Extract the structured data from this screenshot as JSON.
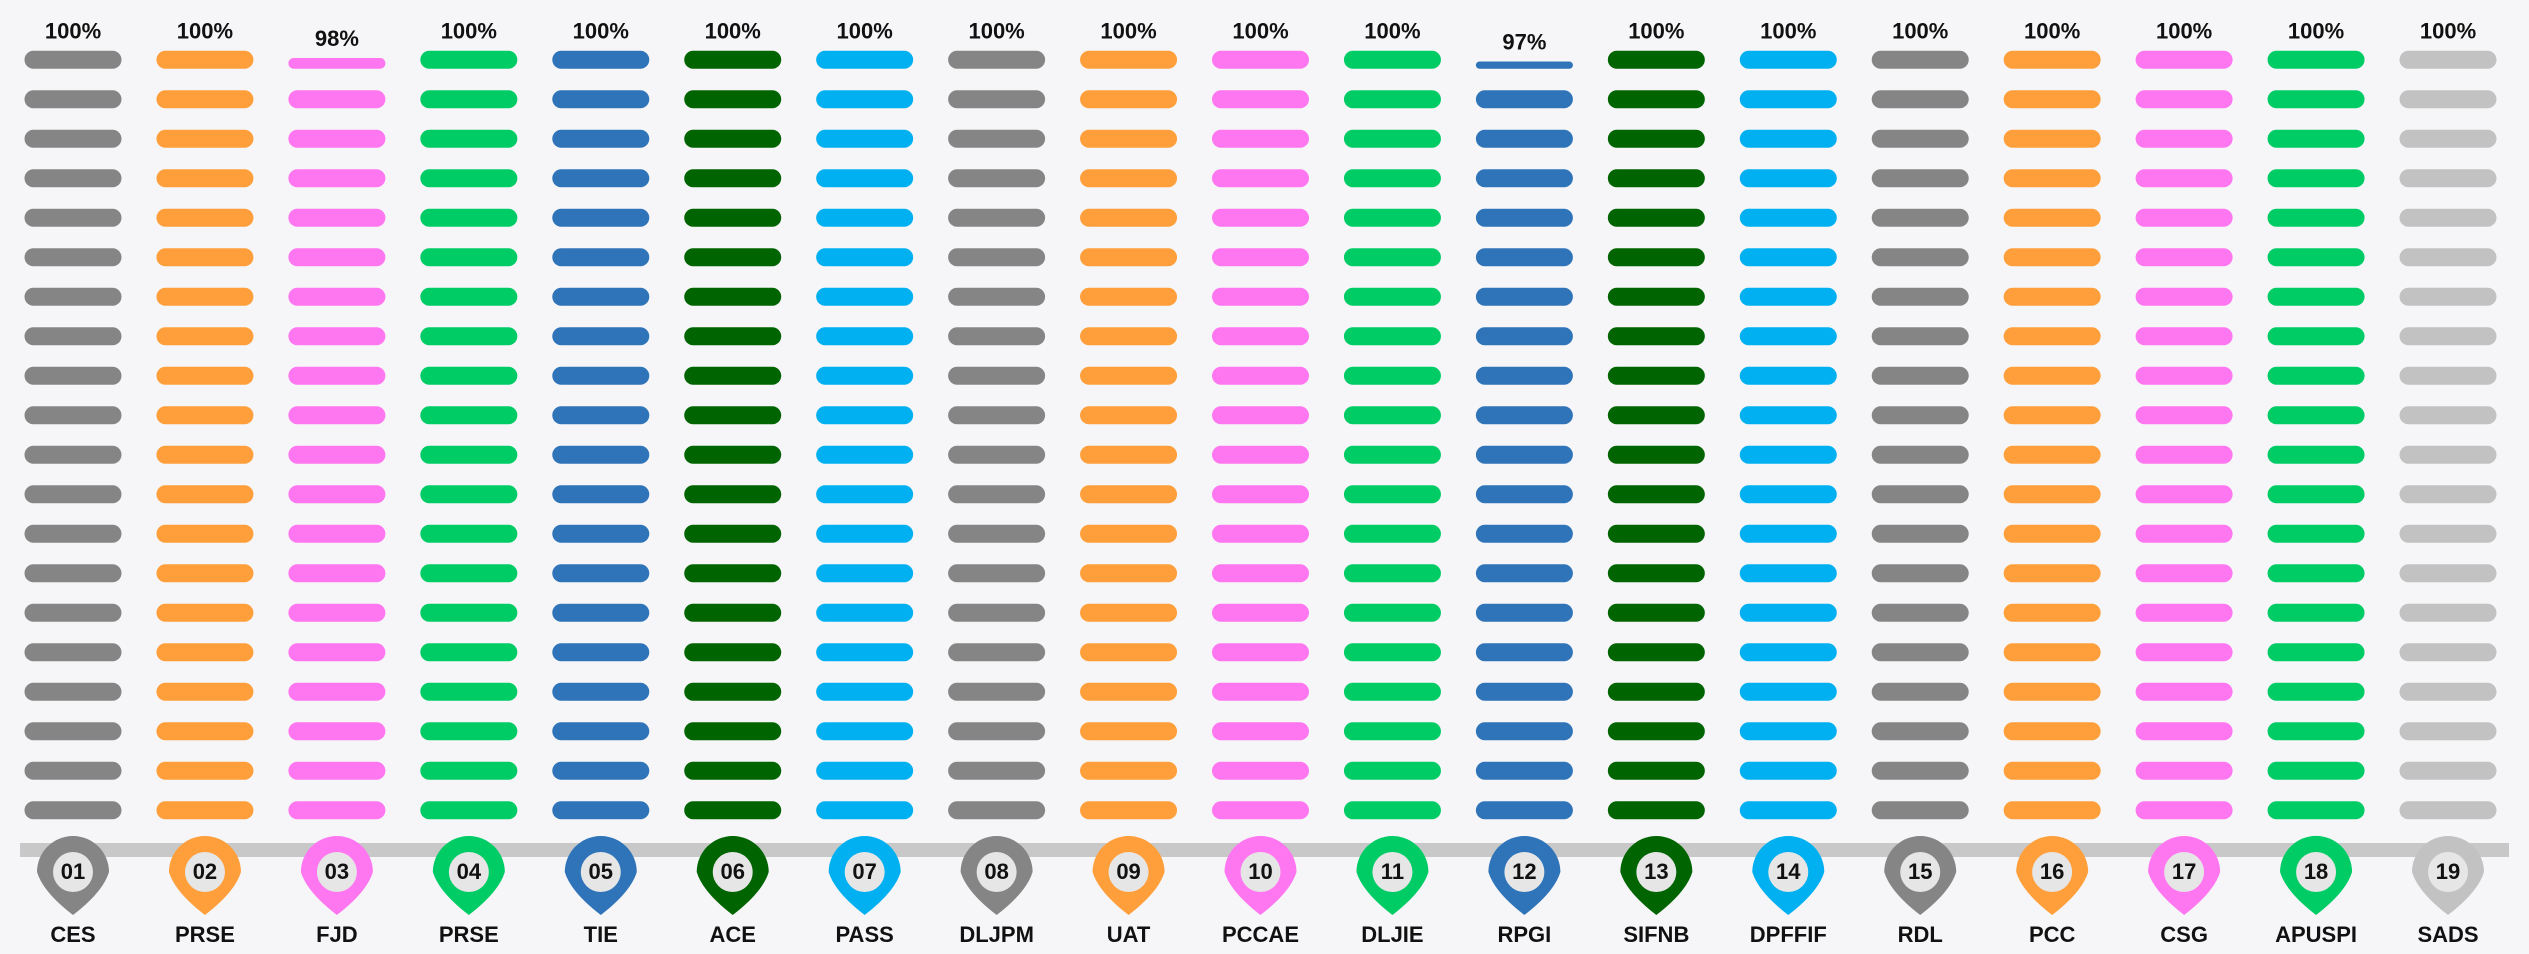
{
  "chart_data": {
    "type": "pill-bar",
    "categories": [
      "CES",
      "PRSE",
      "FJD",
      "PRSE",
      "TIE",
      "ACE",
      "PASS",
      "DLJPM",
      "UAT",
      "PCCAE",
      "DLJIE",
      "RPGI",
      "SIFNB",
      "DPFFIF",
      "RDL",
      "PCC",
      "CSG",
      "APUSPI",
      "SADS"
    ],
    "codes": [
      "01",
      "02",
      "03",
      "04",
      "05",
      "06",
      "07",
      "08",
      "09",
      "10",
      "11",
      "12",
      "13",
      "14",
      "15",
      "16",
      "17",
      "18",
      "19"
    ],
    "values": [
      100,
      100,
      98,
      100,
      100,
      100,
      100,
      100,
      100,
      100,
      100,
      97,
      100,
      100,
      100,
      100,
      100,
      100,
      100
    ],
    "value_labels": [
      "100%",
      "100%",
      "98%",
      "100%",
      "100%",
      "100%",
      "100%",
      "100%",
      "100%",
      "100%",
      "100%",
      "97%",
      "100%",
      "100%",
      "100%",
      "100%",
      "100%",
      "100%",
      "100%"
    ],
    "colors": [
      "#858585",
      "#ff9f3b",
      "#ff77f0",
      "#00cc66",
      "#2f74b8",
      "#006400",
      "#00b0f0",
      "#858585",
      "#ff9f3b",
      "#ff77f0",
      "#00cc66",
      "#2f74b8",
      "#006400",
      "#00b0f0",
      "#858585",
      "#ff9f3b",
      "#ff77f0",
      "#00cc66",
      "#c2c2c2"
    ],
    "ylim": [
      0,
      100
    ],
    "pill_step": 5
  }
}
